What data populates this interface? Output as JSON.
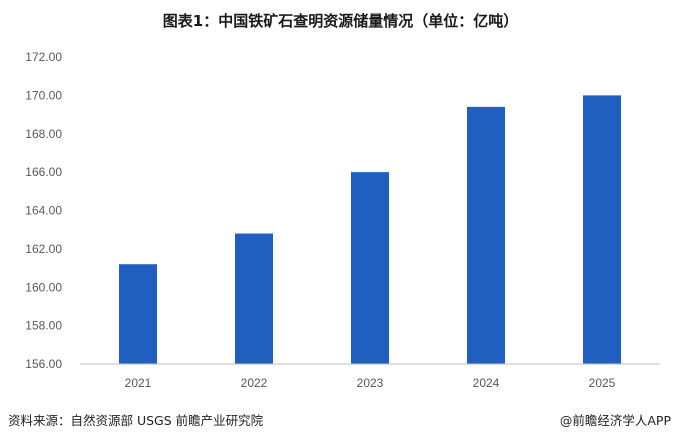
{
  "chart_data": {
    "type": "bar",
    "title": "图表1：中国铁矿石查明资源储量情况（单位：亿吨）",
    "categories": [
      "2021",
      "2022",
      "2023",
      "2024",
      "2025"
    ],
    "values": [
      161.2,
      162.8,
      166.0,
      169.4,
      170.0
    ],
    "ylim": [
      156,
      172
    ],
    "yticks": [
      "156.00",
      "158.00",
      "160.00",
      "162.00",
      "164.00",
      "166.00",
      "168.00",
      "170.00",
      "172.00"
    ],
    "bar_color": "#1f5fbf",
    "grid": false
  },
  "footer": {
    "source": "资料来源：自然资源部 USGS  前瞻产业研究院",
    "credit": "@前瞻经济学人APP"
  },
  "watermark": "前瞻产业研究院"
}
